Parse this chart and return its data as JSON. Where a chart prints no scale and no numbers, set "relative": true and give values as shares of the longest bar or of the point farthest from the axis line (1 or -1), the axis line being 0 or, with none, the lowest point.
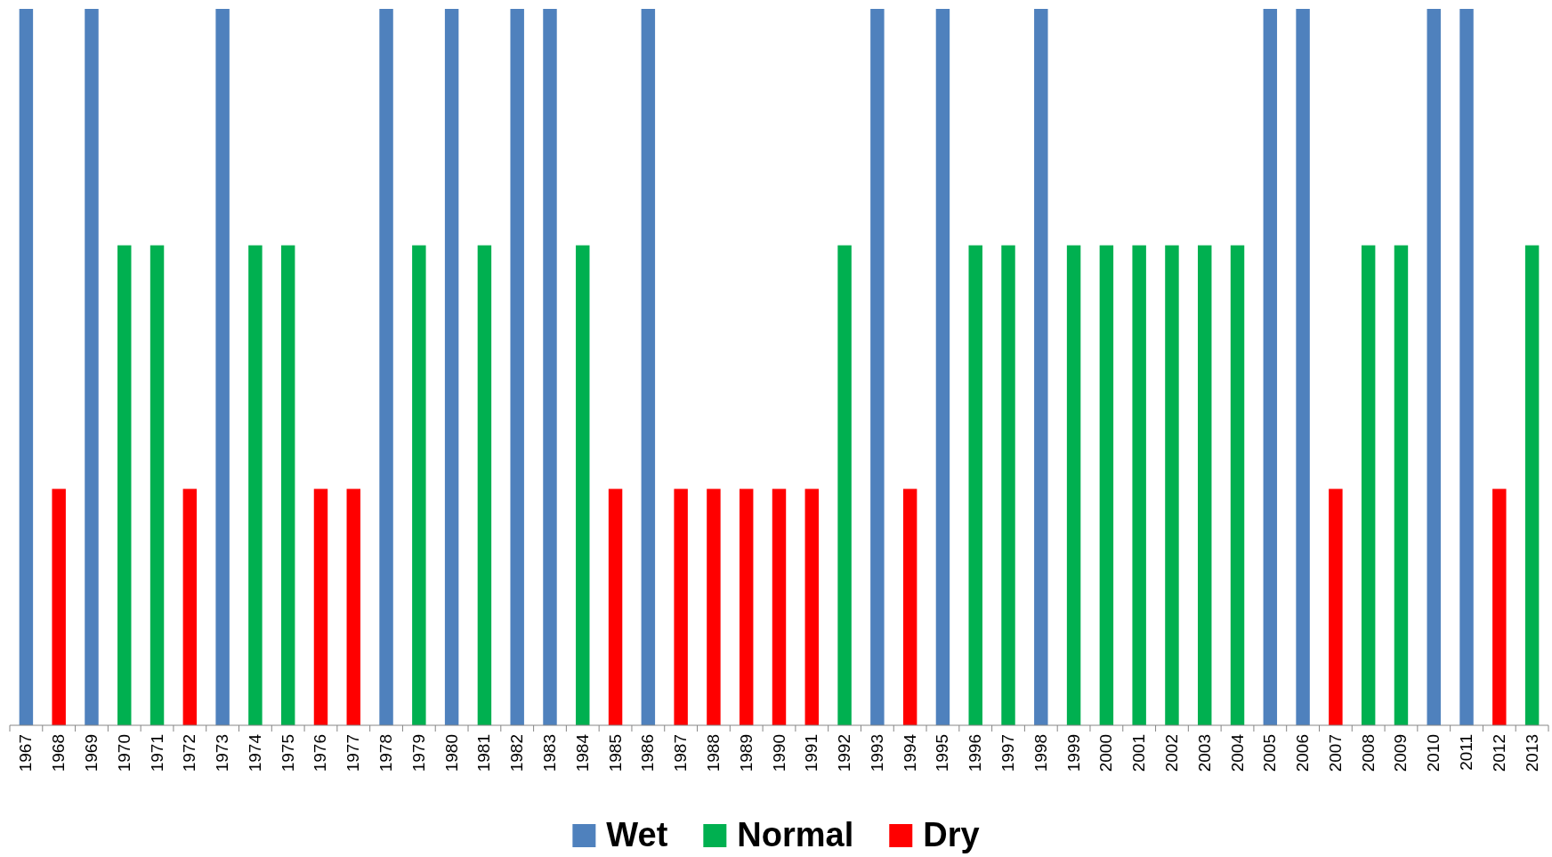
{
  "chart_data": {
    "type": "bar",
    "relative": true,
    "legend": "bottom",
    "categories": [
      "1967",
      "1968",
      "1969",
      "1970",
      "1971",
      "1972",
      "1973",
      "1974",
      "1975",
      "1976",
      "1977",
      "1978",
      "1979",
      "1980",
      "1981",
      "1982",
      "1983",
      "1984",
      "1985",
      "1986",
      "1987",
      "1988",
      "1989",
      "1990",
      "1991",
      "1992",
      "1993",
      "1994",
      "1995",
      "1996",
      "1997",
      "1998",
      "1999",
      "2000",
      "2001",
      "2002",
      "2003",
      "2004",
      "2005",
      "2006",
      "2007",
      "2008",
      "2009",
      "2010",
      "2011",
      "2012",
      "2013"
    ],
    "series": [
      {
        "name": "Wet",
        "color": "#4f81bd",
        "values": [
          1,
          null,
          1,
          null,
          null,
          null,
          1,
          null,
          null,
          null,
          null,
          1,
          null,
          1,
          null,
          1,
          1,
          null,
          null,
          1,
          null,
          null,
          null,
          null,
          null,
          null,
          1,
          null,
          1,
          null,
          null,
          1,
          null,
          null,
          null,
          null,
          null,
          null,
          1,
          1,
          null,
          null,
          null,
          1,
          1,
          null,
          null
        ]
      },
      {
        "name": "Normal",
        "color": "#00b050",
        "values": [
          null,
          null,
          null,
          0.67,
          0.67,
          null,
          null,
          0.67,
          0.67,
          null,
          null,
          null,
          0.67,
          null,
          0.67,
          null,
          null,
          0.67,
          null,
          null,
          null,
          null,
          null,
          null,
          null,
          0.67,
          null,
          null,
          null,
          0.67,
          0.67,
          null,
          0.67,
          0.67,
          0.67,
          0.67,
          0.67,
          0.67,
          null,
          null,
          null,
          0.67,
          0.67,
          null,
          null,
          null,
          0.67
        ]
      },
      {
        "name": "Dry",
        "color": "#ff0000",
        "values": [
          null,
          0.33,
          null,
          null,
          null,
          0.33,
          null,
          null,
          null,
          0.33,
          0.33,
          null,
          null,
          null,
          null,
          null,
          null,
          null,
          0.33,
          null,
          0.33,
          0.33,
          0.33,
          0.33,
          0.33,
          null,
          null,
          0.33,
          null,
          null,
          null,
          null,
          null,
          null,
          null,
          null,
          null,
          null,
          null,
          null,
          0.33,
          null,
          null,
          null,
          null,
          0.33,
          null
        ]
      }
    ]
  }
}
